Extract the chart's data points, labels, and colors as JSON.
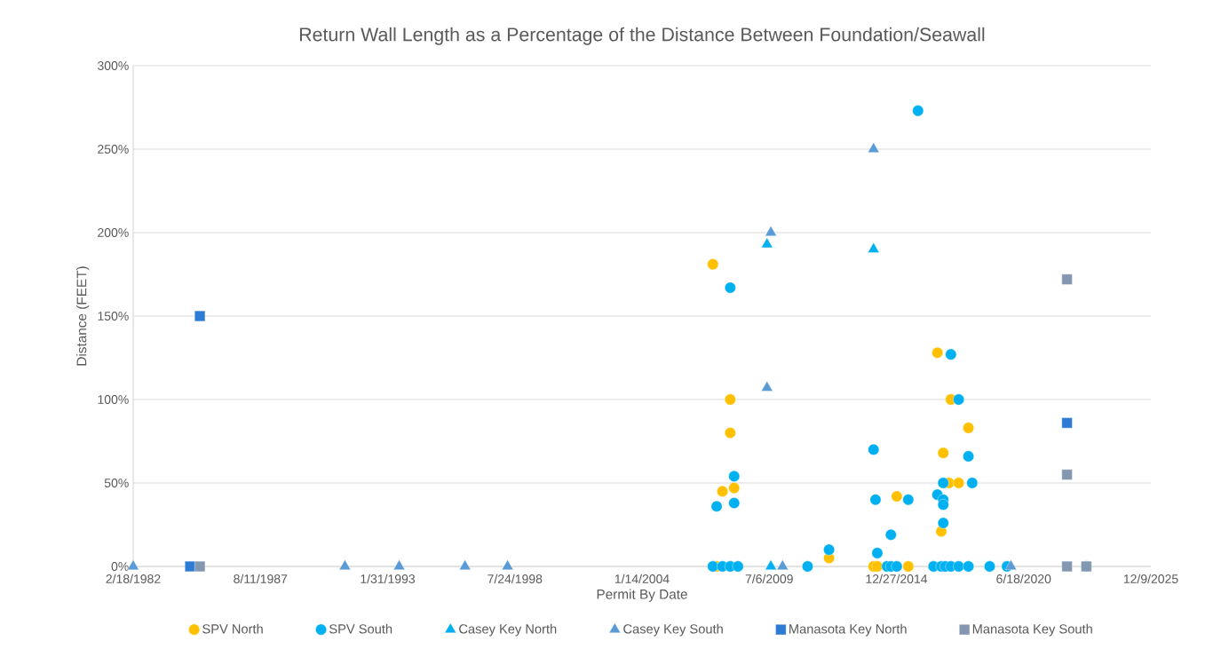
{
  "chart_data": {
    "type": "scatter",
    "title": "Return Wall Length as a Percentage of the Distance Between Foundation/Seawall",
    "xlabel": "Permit By Date",
    "ylabel": "Distance (FEET)",
    "xlim": [
      "1982-02-18",
      "2025-12-09"
    ],
    "xticks": [
      {
        "value": "1982-02-18",
        "label": "2/18/1982"
      },
      {
        "value": "1987-08-11",
        "label": "8/11/1987"
      },
      {
        "value": "1993-01-31",
        "label": "1/31/1993"
      },
      {
        "value": "1998-07-24",
        "label": "7/24/1998"
      },
      {
        "value": "2004-01-14",
        "label": "1/14/2004"
      },
      {
        "value": "2009-07-06",
        "label": "7/6/2009"
      },
      {
        "value": "2014-12-27",
        "label": "12/27/2014"
      },
      {
        "value": "2020-06-18",
        "label": "6/18/2020"
      },
      {
        "value": "2025-12-09",
        "label": "12/9/2025"
      }
    ],
    "ylim": [
      0,
      300
    ],
    "yticks": [
      {
        "value": 0,
        "label": "0%"
      },
      {
        "value": 50,
        "label": "50%"
      },
      {
        "value": 100,
        "label": "100%"
      },
      {
        "value": 150,
        "label": "150%"
      },
      {
        "value": 200,
        "label": "200%"
      },
      {
        "value": 250,
        "label": "250%"
      },
      {
        "value": 300,
        "label": "300%"
      }
    ],
    "grid": "y",
    "legend": "bottom",
    "series": [
      {
        "name": "SPV North",
        "color": "#ffc000",
        "marker": "circle",
        "x": [
          "2007-02",
          "2007-11",
          "2007-11",
          "2007-07",
          "2008-01",
          "2007-04",
          "2012-02",
          "2014-01",
          "2014-03",
          "2015-01",
          "2015-07",
          "2016-10",
          "2017-05",
          "2018-02",
          "2017-01",
          "2017-04",
          "2017-09",
          "2016-12"
        ],
        "values": [
          181,
          100,
          80,
          45,
          47,
          0,
          5,
          0,
          0,
          42,
          0,
          128,
          100,
          83,
          68,
          50,
          50,
          21
        ]
      },
      {
        "name": "SPV South",
        "color": "#00b0f0",
        "marker": "circle",
        "x": [
          "2007-11",
          "2008-01",
          "2007-04",
          "2008-01",
          "2007-02",
          "2007-07",
          "2007-11",
          "2008-03",
          "2011-03",
          "2015-12",
          "2017-05",
          "2017-09",
          "2018-02",
          "2014-01",
          "2014-02",
          "2015-07",
          "2016-10",
          "2017-01",
          "2017-01",
          "2017-01",
          "2018-04",
          "2017-01",
          "2014-10",
          "2012-02",
          "2014-03",
          "2014-08",
          "2014-10",
          "2015-01",
          "2016-08",
          "2016-12",
          "2017-02",
          "2017-05",
          "2017-09",
          "2018-02",
          "2019-01",
          "2019-10",
          "2023-03"
        ],
        "values": [
          167,
          54,
          36,
          38,
          0,
          0,
          0,
          0,
          0,
          273,
          127,
          100,
          66,
          70,
          40,
          40,
          43,
          40,
          37,
          50,
          50,
          26,
          19,
          10,
          8,
          0,
          0,
          0,
          0,
          0,
          0,
          0,
          0,
          0,
          0,
          0,
          0
        ]
      },
      {
        "name": "Casey Key North",
        "color": "#00b0f0",
        "marker": "triangle",
        "x": [
          "2009-06",
          "2014-01",
          "2009-08"
        ],
        "values": [
          193,
          190,
          0
        ]
      },
      {
        "name": "Casey Key South",
        "color": "#5b9bd5",
        "marker": "triangle",
        "x": [
          "2009-08",
          "2009-06",
          "2014-01",
          "1982-02-18",
          "1991-04",
          "1993-08",
          "1996-06",
          "1998-04",
          "2010-02",
          "2019-12"
        ],
        "values": [
          200,
          107,
          250,
          0,
          0,
          0,
          0,
          0,
          0,
          0
        ]
      },
      {
        "name": "Manasota Key North",
        "color": "#2e7bd6",
        "marker": "square",
        "x": [
          "1985-01",
          "1984-08",
          "2022-05"
        ],
        "values": [
          150,
          0,
          86
        ]
      },
      {
        "name": "Manasota Key South",
        "color": "#8497b0",
        "marker": "square",
        "x": [
          "1985-01",
          "2022-05",
          "2022-05",
          "2022-05",
          "2023-03"
        ],
        "values": [
          0,
          172,
          55,
          0,
          0
        ]
      }
    ]
  }
}
